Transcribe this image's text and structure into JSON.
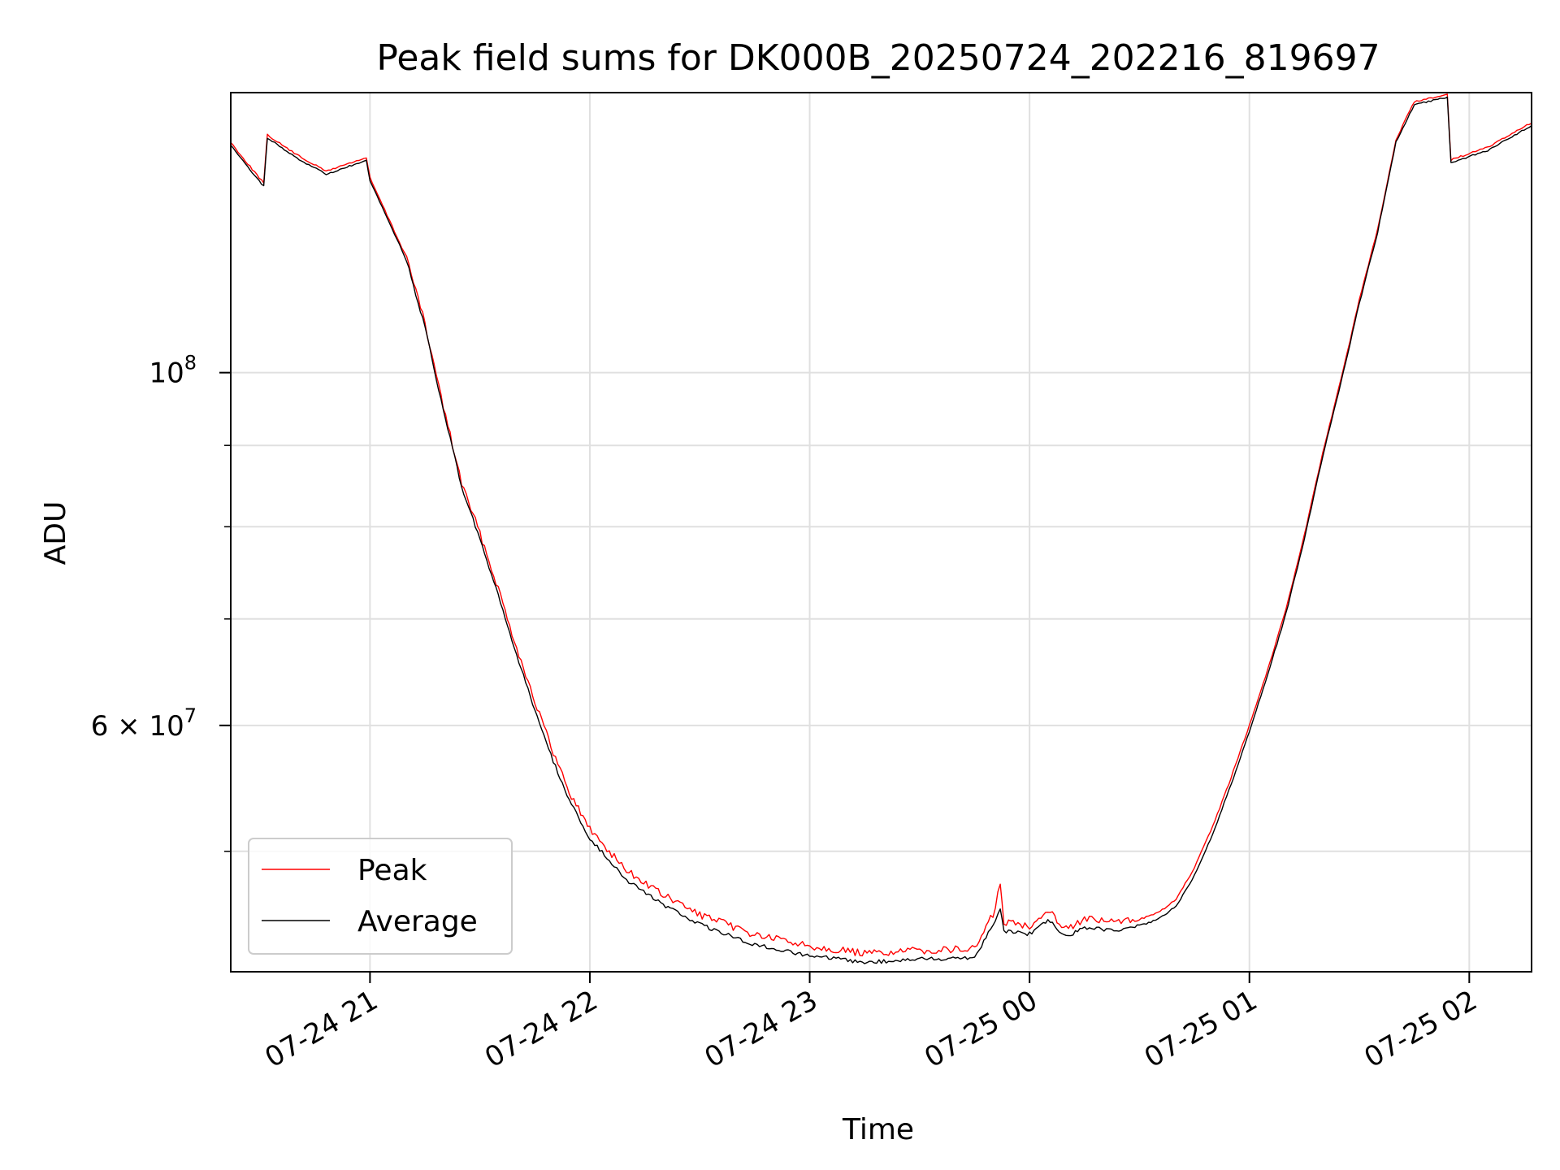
{
  "chart_data": {
    "type": "line",
    "title": "Peak field sums for DK000B_20250724_202216_819697",
    "xlabel": "Time",
    "ylabel": "ADU",
    "yscale": "log",
    "grid": true,
    "legend_position": "lower-left",
    "xlim": [
      "2025-07-24 20:22",
      "2025-07-25 02:17"
    ],
    "ylim": [
      42000000,
      150000000
    ],
    "x_ticks": [
      {
        "t": "2025-07-24 21:00",
        "label": "07-24 21"
      },
      {
        "t": "2025-07-24 22:00",
        "label": "07-24 22"
      },
      {
        "t": "2025-07-24 23:00",
        "label": "07-24 23"
      },
      {
        "t": "2025-07-25 00:00",
        "label": "07-25 00"
      },
      {
        "t": "2025-07-25 01:00",
        "label": "07-25 01"
      },
      {
        "t": "2025-07-25 02:00",
        "label": "07-25 02"
      }
    ],
    "y_major_ticks": [
      {
        "value": 100000000,
        "base": "10",
        "exp": "8"
      },
      {
        "value": 60000000,
        "base": "6 × 10",
        "exp": "7"
      }
    ],
    "y_minor_ticks": [
      50000000,
      70000000,
      80000000,
      90000000
    ],
    "series": [
      {
        "name": "Peak",
        "color": "#ff0000",
        "points": [
          [
            "2025-07-24 20:22",
            139500000
          ],
          [
            "2025-07-24 20:26",
            135800000
          ],
          [
            "2025-07-24 20:31",
            131500000
          ],
          [
            "2025-07-24 20:32",
            141000000
          ],
          [
            "2025-07-24 20:40",
            137000000
          ],
          [
            "2025-07-24 20:48",
            133800000
          ],
          [
            "2025-07-24 20:55",
            135500000
          ],
          [
            "2025-07-24 20:59",
            136400000
          ],
          [
            "2025-07-24 21:00",
            132500000
          ],
          [
            "2025-07-24 21:10",
            118000000
          ],
          [
            "2025-07-24 21:15",
            107000000
          ],
          [
            "2025-07-24 21:20",
            95000000
          ],
          [
            "2025-07-24 21:25",
            85000000
          ],
          [
            "2025-07-24 21:30",
            79000000
          ],
          [
            "2025-07-24 21:35",
            73000000
          ],
          [
            "2025-07-24 21:40",
            67000000
          ],
          [
            "2025-07-24 21:45",
            62000000
          ],
          [
            "2025-07-24 21:50",
            57500000
          ],
          [
            "2025-07-24 21:55",
            54000000
          ],
          [
            "2025-07-24 22:00",
            51500000
          ],
          [
            "2025-07-24 22:10",
            48500000
          ],
          [
            "2025-07-24 22:20",
            46800000
          ],
          [
            "2025-07-24 22:30",
            45500000
          ],
          [
            "2025-07-24 22:45",
            44200000
          ],
          [
            "2025-07-24 23:00",
            43500000
          ],
          [
            "2025-07-24 23:15",
            43000000
          ],
          [
            "2025-07-24 23:30",
            43200000
          ],
          [
            "2025-07-24 23:45",
            43300000
          ],
          [
            "2025-07-24 23:50",
            45500000
          ],
          [
            "2025-07-24 23:52",
            47500000
          ],
          [
            "2025-07-24 23:53",
            45000000
          ],
          [
            "2025-07-25 00:00",
            44800000
          ],
          [
            "2025-07-25 00:05",
            45800000
          ],
          [
            "2025-07-25 00:10",
            44600000
          ],
          [
            "2025-07-25 00:15",
            45200000
          ],
          [
            "2025-07-25 00:25",
            45000000
          ],
          [
            "2025-07-25 00:30",
            45300000
          ],
          [
            "2025-07-25 00:35",
            45700000
          ],
          [
            "2025-07-25 00:40",
            46600000
          ],
          [
            "2025-07-25 00:45",
            48800000
          ],
          [
            "2025-07-25 00:50",
            51800000
          ],
          [
            "2025-07-25 00:55",
            55600000
          ],
          [
            "2025-07-25 01:00",
            60000000
          ],
          [
            "2025-07-25 01:05",
            65000000
          ],
          [
            "2025-07-25 01:10",
            71000000
          ],
          [
            "2025-07-25 01:15",
            79000000
          ],
          [
            "2025-07-25 01:20",
            89000000
          ],
          [
            "2025-07-25 01:25",
            99000000
          ],
          [
            "2025-07-25 01:30",
            111000000
          ],
          [
            "2025-07-25 01:35",
            123000000
          ],
          [
            "2025-07-25 01:40",
            140000000
          ],
          [
            "2025-07-25 01:45",
            148000000
          ],
          [
            "2025-07-25 01:54",
            149500000
          ],
          [
            "2025-07-25 01:55",
            136000000
          ],
          [
            "2025-07-25 02:05",
            138500000
          ],
          [
            "2025-07-25 02:17",
            143500000
          ]
        ]
      },
      {
        "name": "Average",
        "color": "#000000",
        "points": [
          [
            "2025-07-24 20:22",
            139000000
          ],
          [
            "2025-07-24 20:26",
            135300000
          ],
          [
            "2025-07-24 20:31",
            131000000
          ],
          [
            "2025-07-24 20:32",
            140500000
          ],
          [
            "2025-07-24 20:40",
            136500000
          ],
          [
            "2025-07-24 20:48",
            133300000
          ],
          [
            "2025-07-24 20:55",
            135000000
          ],
          [
            "2025-07-24 20:59",
            135900000
          ],
          [
            "2025-07-24 21:00",
            132000000
          ],
          [
            "2025-07-24 21:10",
            117700000
          ],
          [
            "2025-07-24 21:15",
            106800000
          ],
          [
            "2025-07-24 21:20",
            94800000
          ],
          [
            "2025-07-24 21:25",
            84800000
          ],
          [
            "2025-07-24 21:30",
            78600000
          ],
          [
            "2025-07-24 21:35",
            72400000
          ],
          [
            "2025-07-24 21:40",
            66500000
          ],
          [
            "2025-07-24 21:45",
            61400000
          ],
          [
            "2025-07-24 21:50",
            57000000
          ],
          [
            "2025-07-24 21:55",
            53500000
          ],
          [
            "2025-07-24 22:00",
            51000000
          ],
          [
            "2025-07-24 22:10",
            48000000
          ],
          [
            "2025-07-24 22:20",
            46300000
          ],
          [
            "2025-07-24 22:30",
            45000000
          ],
          [
            "2025-07-24 22:45",
            43700000
          ],
          [
            "2025-07-24 23:00",
            43000000
          ],
          [
            "2025-07-24 23:15",
            42600000
          ],
          [
            "2025-07-24 23:30",
            42800000
          ],
          [
            "2025-07-24 23:45",
            42900000
          ],
          [
            "2025-07-24 23:50",
            45000000
          ],
          [
            "2025-07-24 23:52",
            46000000
          ],
          [
            "2025-07-24 23:53",
            44600000
          ],
          [
            "2025-07-25 00:00",
            44400000
          ],
          [
            "2025-07-25 00:05",
            45300000
          ],
          [
            "2025-07-25 00:10",
            44200000
          ],
          [
            "2025-07-25 00:15",
            44800000
          ],
          [
            "2025-07-25 00:25",
            44600000
          ],
          [
            "2025-07-25 00:30",
            44900000
          ],
          [
            "2025-07-25 00:35",
            45300000
          ],
          [
            "2025-07-25 00:40",
            46200000
          ],
          [
            "2025-07-25 00:45",
            48300000
          ],
          [
            "2025-07-25 00:50",
            51300000
          ],
          [
            "2025-07-25 00:55",
            55100000
          ],
          [
            "2025-07-25 01:00",
            59500000
          ],
          [
            "2025-07-25 01:05",
            64600000
          ],
          [
            "2025-07-25 01:10",
            70600000
          ],
          [
            "2025-07-25 01:15",
            78600000
          ],
          [
            "2025-07-25 01:20",
            88600000
          ],
          [
            "2025-07-25 01:25",
            98600000
          ],
          [
            "2025-07-25 01:30",
            110600000
          ],
          [
            "2025-07-25 01:35",
            122600000
          ],
          [
            "2025-07-25 01:40",
            139600000
          ],
          [
            "2025-07-25 01:45",
            147500000
          ],
          [
            "2025-07-25 01:54",
            149000000
          ],
          [
            "2025-07-25 01:55",
            135500000
          ],
          [
            "2025-07-25 02:05",
            138000000
          ],
          [
            "2025-07-25 02:17",
            143000000
          ]
        ]
      }
    ]
  }
}
